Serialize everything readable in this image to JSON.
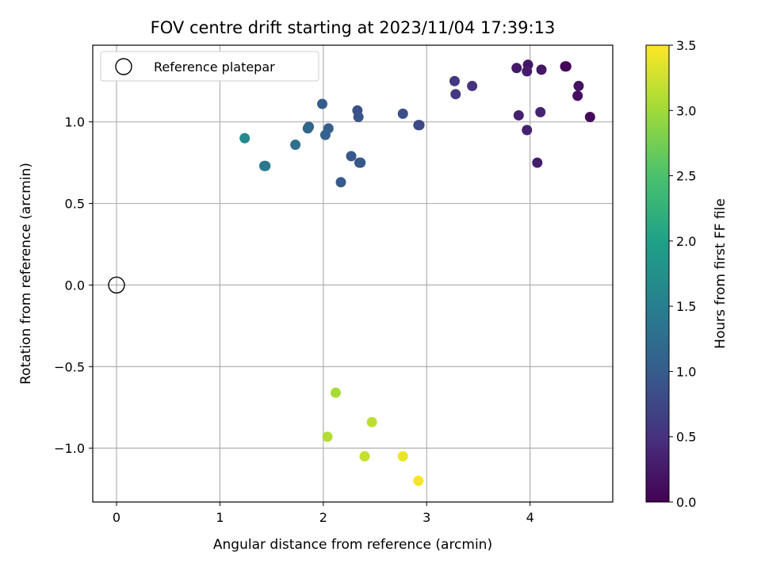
{
  "chart_data": {
    "type": "scatter",
    "title": "FOV centre drift starting at 2023/11/04 17:39:13",
    "xlabel": "Angular distance from reference (arcmin)",
    "ylabel": "Rotation from reference (arcmin)",
    "xlim": [
      -0.23,
      4.8
    ],
    "ylim": [
      -1.33,
      1.47
    ],
    "xticks": [
      0,
      1,
      2,
      3,
      4
    ],
    "xtick_labels": [
      "0",
      "1",
      "2",
      "3",
      "4"
    ],
    "yticks": [
      -1.0,
      -0.5,
      0.0,
      0.5,
      1.0
    ],
    "ytick_labels": [
      "−1.0",
      "−0.5",
      "0.0",
      "0.5",
      "1.0"
    ],
    "grid": true,
    "legend": {
      "position": "top-left",
      "entries": [
        {
          "label": "Reference platepar",
          "marker": "open-circle",
          "x": 0,
          "y": 0
        }
      ]
    },
    "colorbar": {
      "label": "Hours from first FF file",
      "colormap": "viridis",
      "range": [
        0.0,
        3.5
      ],
      "ticks": [
        0.0,
        0.5,
        1.0,
        1.5,
        2.0,
        2.5,
        3.0,
        3.5
      ],
      "tick_labels": [
        "0.0",
        "0.5",
        "1.0",
        "1.5",
        "2.0",
        "2.5",
        "3.0",
        "3.5"
      ]
    },
    "points": [
      {
        "x": 4.34,
        "y": 1.34,
        "c": 0.0
      },
      {
        "x": 4.35,
        "y": 1.34,
        "c": 0.05
      },
      {
        "x": 4.58,
        "y": 1.03,
        "c": 0.1
      },
      {
        "x": 4.46,
        "y": 1.16,
        "c": 0.13
      },
      {
        "x": 4.47,
        "y": 1.22,
        "c": 0.16
      },
      {
        "x": 3.98,
        "y": 1.35,
        "c": 0.2
      },
      {
        "x": 4.11,
        "y": 1.32,
        "c": 0.22
      },
      {
        "x": 3.87,
        "y": 1.33,
        "c": 0.25
      },
      {
        "x": 3.97,
        "y": 1.31,
        "c": 0.27
      },
      {
        "x": 4.07,
        "y": 0.75,
        "c": 0.3
      },
      {
        "x": 3.89,
        "y": 1.04,
        "c": 0.32
      },
      {
        "x": 3.97,
        "y": 0.95,
        "c": 0.34
      },
      {
        "x": 4.1,
        "y": 1.06,
        "c": 0.36
      },
      {
        "x": 3.44,
        "y": 1.22,
        "c": 0.5
      },
      {
        "x": 3.27,
        "y": 1.25,
        "c": 0.55
      },
      {
        "x": 3.28,
        "y": 1.17,
        "c": 0.6
      },
      {
        "x": 2.92,
        "y": 0.98,
        "c": 0.75
      },
      {
        "x": 2.93,
        "y": 0.98,
        "c": 0.78
      },
      {
        "x": 2.77,
        "y": 1.05,
        "c": 0.85
      },
      {
        "x": 2.33,
        "y": 1.07,
        "c": 0.88
      },
      {
        "x": 2.34,
        "y": 1.03,
        "c": 0.9
      },
      {
        "x": 2.35,
        "y": 0.75,
        "c": 0.92
      },
      {
        "x": 2.36,
        "y": 0.75,
        "c": 0.94
      },
      {
        "x": 2.27,
        "y": 0.79,
        "c": 0.95
      },
      {
        "x": 2.17,
        "y": 0.63,
        "c": 0.97
      },
      {
        "x": 1.99,
        "y": 1.11,
        "c": 1.0
      },
      {
        "x": 2.05,
        "y": 0.96,
        "c": 1.05
      },
      {
        "x": 2.02,
        "y": 0.92,
        "c": 1.08
      },
      {
        "x": 1.86,
        "y": 0.97,
        "c": 1.12
      },
      {
        "x": 1.85,
        "y": 0.96,
        "c": 1.15
      },
      {
        "x": 1.73,
        "y": 0.86,
        "c": 1.25
      },
      {
        "x": 1.44,
        "y": 0.73,
        "c": 1.35
      },
      {
        "x": 1.43,
        "y": 0.73,
        "c": 1.4
      },
      {
        "x": 1.24,
        "y": 0.9,
        "c": 1.65
      },
      {
        "x": 2.12,
        "y": -0.66,
        "c": 3.05
      },
      {
        "x": 2.04,
        "y": -0.93,
        "c": 3.1
      },
      {
        "x": 2.47,
        "y": -0.84,
        "c": 3.15
      },
      {
        "x": 2.4,
        "y": -1.05,
        "c": 3.2
      },
      {
        "x": 2.77,
        "y": -1.05,
        "c": 3.4
      },
      {
        "x": 2.92,
        "y": -1.2,
        "c": 3.45
      }
    ]
  }
}
